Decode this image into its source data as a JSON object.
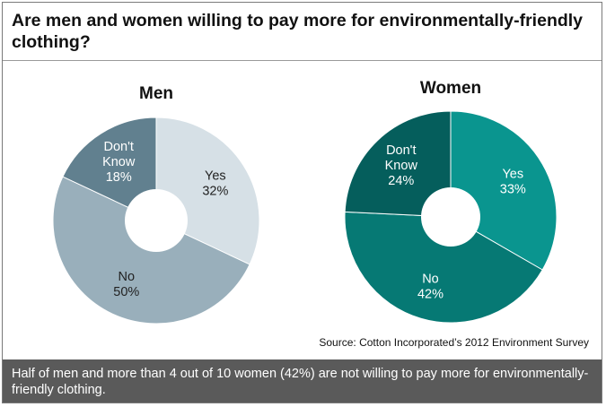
{
  "title": "Are men and women willing  to pay more for environmentally-friendly clothing?",
  "source": "Source: Cotton Incorporated’s  2012 Environment  Survey",
  "footer": "Half of men and more than 4 out of 10 women (42%) are not willing to pay more for environmentally-friendly  clothing.",
  "chart_data": [
    {
      "type": "pie",
      "title": "Men",
      "slices": [
        {
          "label": "Yes",
          "value": 32,
          "color": "#d6e0e6",
          "text_color": "#222222"
        },
        {
          "label": "No",
          "value": 50,
          "color": "#99afbb",
          "text_color": "#222222"
        },
        {
          "label": "Don't Know",
          "value": 18,
          "color": "#61808f",
          "text_color": "#ffffff"
        }
      ]
    },
    {
      "type": "pie",
      "title": "Women",
      "slices": [
        {
          "label": "Yes",
          "value": 33,
          "color": "#0a958f",
          "text_color": "#ffffff"
        },
        {
          "label": "No",
          "value": 42,
          "color": "#067974",
          "text_color": "#ffffff"
        },
        {
          "label": "Don't Know",
          "value": 24,
          "color": "#055e5c",
          "text_color": "#ffffff"
        }
      ]
    }
  ]
}
